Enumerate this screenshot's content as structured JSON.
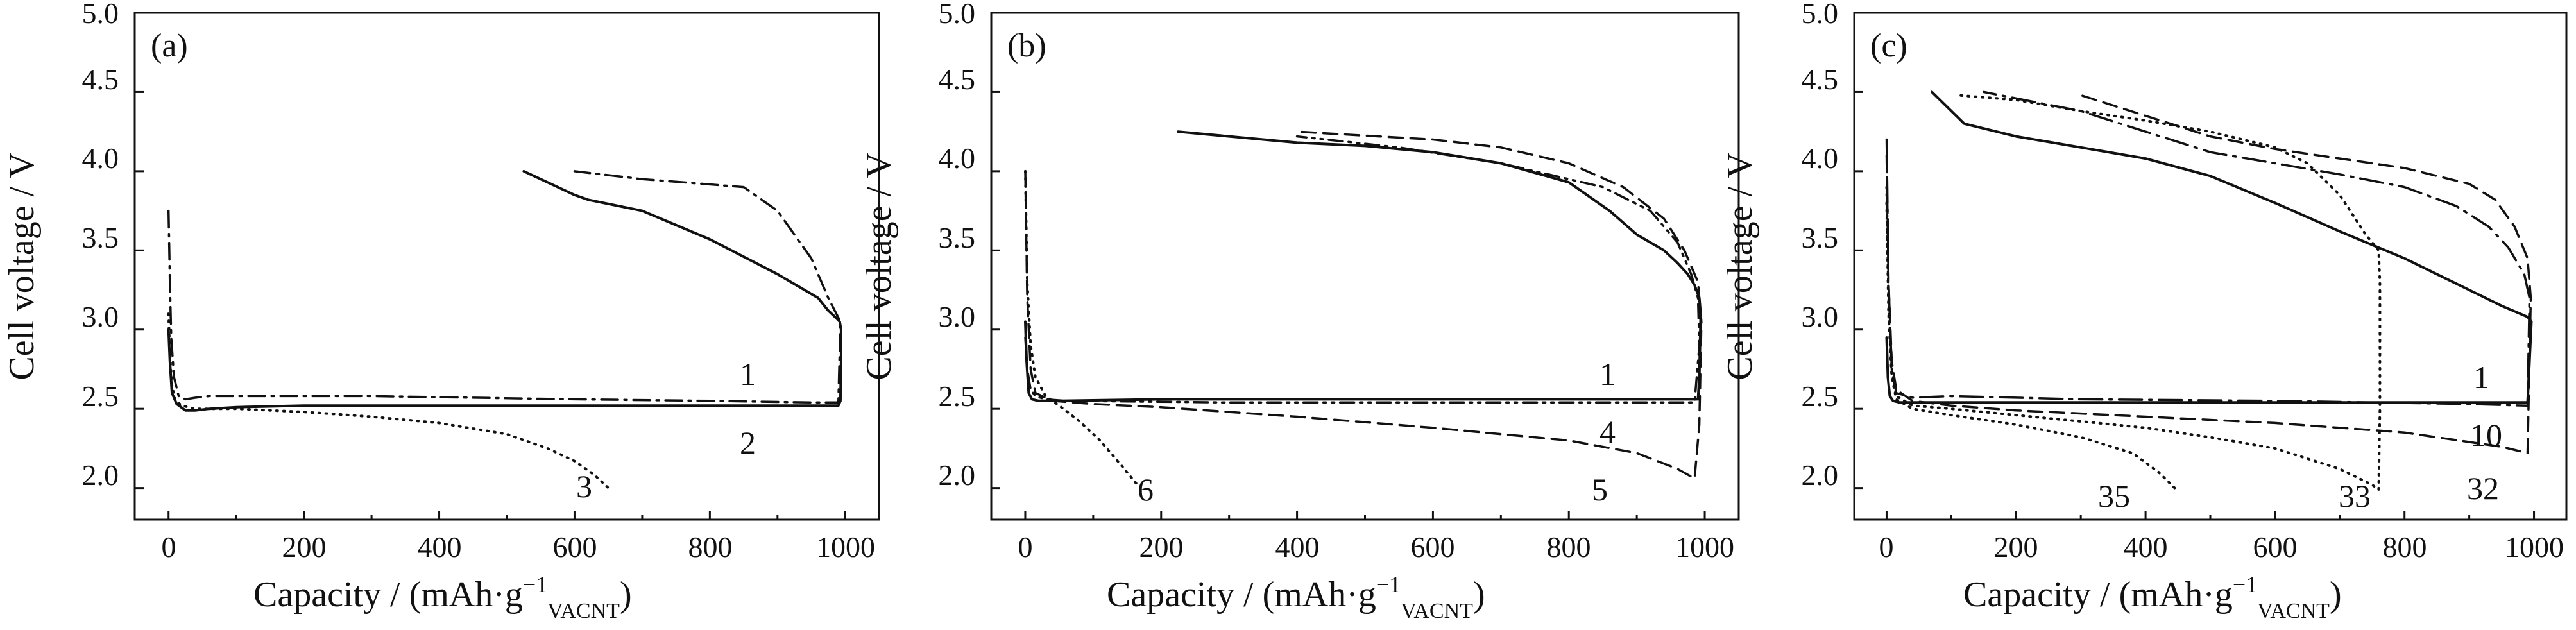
{
  "chart_data": [
    {
      "panel": "(a)",
      "type": "line",
      "xlabel": "Capacity / (mAh·g",
      "xlabel_sup": "−1",
      "xlabel_sub": "VACNT",
      "xlabel_close": ")",
      "ylabel": "Cell voltage / V",
      "xlim": [
        -50,
        1050
      ],
      "ylim": [
        1.8,
        5.0
      ],
      "xticks": [
        "0",
        "200",
        "400",
        "600",
        "800",
        "1000"
      ],
      "yticks": [
        "2.0",
        "2.5",
        "3.0",
        "3.5",
        "4.0",
        "4.5",
        "5.0"
      ],
      "grid": false,
      "series": [
        {
          "name": "1",
          "style": "solid",
          "x": [
            0,
            2,
            5,
            12,
            25,
            40,
            60,
            100,
            200,
            400,
            600,
            800,
            900,
            950,
            975,
            985,
            990,
            993,
            994,
            994,
            992,
            985,
            975,
            960,
            900,
            800,
            700,
            620,
            600,
            525
          ],
          "y": [
            3.0,
            2.8,
            2.6,
            2.53,
            2.49,
            2.49,
            2.5,
            2.51,
            2.52,
            2.52,
            2.52,
            2.52,
            2.52,
            2.52,
            2.52,
            2.52,
            2.52,
            2.55,
            2.8,
            3.0,
            3.05,
            3.08,
            3.12,
            3.2,
            3.35,
            3.57,
            3.75,
            3.82,
            3.85,
            4.0
          ]
        },
        {
          "name": "2",
          "style": "dashdot",
          "x": [
            0,
            2,
            4,
            8,
            15,
            25,
            40,
            60,
            100,
            300,
            600,
            800,
            950,
            990,
            993,
            975,
            950,
            900,
            850,
            700,
            600
          ],
          "y": [
            3.75,
            3.3,
            2.95,
            2.7,
            2.58,
            2.56,
            2.57,
            2.58,
            2.58,
            2.58,
            2.56,
            2.55,
            2.54,
            2.54,
            3.05,
            3.2,
            3.45,
            3.75,
            3.9,
            3.95,
            4.0
          ]
        },
        {
          "name": "3",
          "style": "dotted",
          "x": [
            0,
            2,
            5,
            10,
            20,
            40,
            100,
            200,
            300,
            400,
            500,
            560,
            600,
            630,
            650
          ],
          "y": [
            3.1,
            2.85,
            2.65,
            2.55,
            2.52,
            2.5,
            2.5,
            2.48,
            2.45,
            2.41,
            2.34,
            2.25,
            2.17,
            2.08,
            2.0
          ]
        }
      ]
    },
    {
      "panel": "(b)",
      "type": "line",
      "xlabel": "Capacity / (mAh·g",
      "xlabel_sup": "−1",
      "xlabel_sub": "VACNT",
      "xlabel_close": ")",
      "ylabel": "Cell voltage / V",
      "xlim": [
        -50,
        1050
      ],
      "ylim": [
        1.8,
        5.0
      ],
      "xticks": [
        "0",
        "200",
        "400",
        "600",
        "800",
        "1000"
      ],
      "yticks": [
        "2.0",
        "2.5",
        "3.0",
        "3.5",
        "4.0",
        "4.5",
        "5.0"
      ],
      "grid": false,
      "series": [
        {
          "name": "1",
          "style": "solid",
          "x": [
            0,
            2,
            5,
            10,
            20,
            50,
            200,
            400,
            600,
            800,
            980,
            990,
            992,
            994,
            992,
            985,
            975,
            960,
            940,
            900,
            860,
            800,
            700,
            600,
            500,
            400,
            300,
            225
          ],
          "y": [
            3.05,
            2.8,
            2.6,
            2.56,
            2.55,
            2.55,
            2.56,
            2.56,
            2.56,
            2.56,
            2.56,
            2.56,
            2.7,
            3.1,
            3.2,
            3.28,
            3.35,
            3.42,
            3.5,
            3.6,
            3.75,
            3.93,
            4.05,
            4.12,
            4.16,
            4.18,
            4.22,
            4.25
          ]
        },
        {
          "name": "4",
          "style": "dashdotdot",
          "x": [
            0,
            3,
            8,
            15,
            30,
            60,
            300,
            600,
            900,
            985,
            992,
            990,
            980,
            960,
            920,
            850,
            700,
            550,
            400
          ],
          "y": [
            2.95,
            2.75,
            2.62,
            2.58,
            2.56,
            2.55,
            2.54,
            2.54,
            2.54,
            2.54,
            2.9,
            3.2,
            3.35,
            3.55,
            3.75,
            3.9,
            4.05,
            4.15,
            4.22
          ]
        },
        {
          "name": "5",
          "style": "dashed",
          "x": [
            0,
            3,
            8,
            15,
            40,
            100,
            200,
            400,
            600,
            800,
            900,
            960,
            985,
            992,
            995,
            990,
            970,
            940,
            880,
            800,
            700,
            600,
            520,
            400
          ],
          "y": [
            4.0,
            3.2,
            2.75,
            2.6,
            2.55,
            2.53,
            2.51,
            2.45,
            2.38,
            2.3,
            2.22,
            2.12,
            2.06,
            2.4,
            3.05,
            3.3,
            3.5,
            3.7,
            3.9,
            4.05,
            4.15,
            4.2,
            4.22,
            4.25
          ]
        },
        {
          "name": "6",
          "style": "dotted",
          "x": [
            0,
            3,
            8,
            15,
            30,
            50,
            80,
            110,
            140,
            165
          ],
          "y": [
            4.0,
            3.3,
            2.9,
            2.7,
            2.58,
            2.52,
            2.42,
            2.3,
            2.15,
            2.02
          ]
        }
      ]
    },
    {
      "panel": "(c)",
      "type": "line",
      "xlabel": "Capacity / (mAh·g",
      "xlabel_sup": "−1",
      "xlabel_sub": "VACNT",
      "xlabel_close": ")",
      "ylabel": "Cell voltage / V",
      "xlim": [
        -50,
        1050
      ],
      "ylim": [
        1.8,
        5.0
      ],
      "xticks": [
        "0",
        "200",
        "400",
        "600",
        "800",
        "1000"
      ],
      "yticks": [
        "2.0",
        "2.5",
        "3.0",
        "3.5",
        "4.0",
        "4.5",
        "5.0"
      ],
      "grid": false,
      "series": [
        {
          "name": "1",
          "style": "solid",
          "x": [
            0,
            2,
            5,
            10,
            20,
            50,
            200,
            500,
            800,
            990,
            996,
            990,
            950,
            900,
            800,
            700,
            600,
            500,
            400,
            300,
            200,
            120,
            70
          ],
          "y": [
            2.95,
            2.7,
            2.58,
            2.55,
            2.54,
            2.54,
            2.54,
            2.54,
            2.54,
            2.54,
            3.05,
            3.08,
            3.15,
            3.25,
            3.45,
            3.62,
            3.8,
            3.97,
            4.08,
            4.15,
            4.22,
            4.3,
            4.5
          ]
        },
        {
          "name": "10",
          "style": "longdashdot",
          "x": [
            0,
            3,
            8,
            15,
            40,
            100,
            300,
            600,
            900,
            990,
            993,
            985,
            960,
            930,
            880,
            800,
            700,
            600,
            500,
            400,
            300,
            150
          ],
          "y": [
            4.2,
            3.3,
            2.75,
            2.6,
            2.57,
            2.58,
            2.56,
            2.55,
            2.53,
            2.52,
            3.2,
            3.35,
            3.52,
            3.65,
            3.78,
            3.9,
            3.98,
            4.05,
            4.12,
            4.25,
            4.38,
            4.5
          ]
        },
        {
          "name": "32",
          "style": "dashed",
          "x": [
            0,
            3,
            8,
            15,
            40,
            100,
            200,
            400,
            600,
            800,
            950,
            990,
            995,
            990,
            970,
            940,
            900,
            800,
            700,
            600,
            500,
            400,
            300
          ],
          "y": [
            4.1,
            3.3,
            2.8,
            2.62,
            2.55,
            2.52,
            2.49,
            2.45,
            2.41,
            2.35,
            2.26,
            2.22,
            3.2,
            3.45,
            3.65,
            3.82,
            3.92,
            4.02,
            4.08,
            4.14,
            4.22,
            4.35,
            4.48
          ]
        },
        {
          "name": "33",
          "style": "dotted",
          "x": [
            0,
            3,
            8,
            15,
            40,
            100,
            200,
            300,
            400,
            500,
            600,
            700,
            750,
            760,
            762,
            762,
            760,
            740,
            700,
            650,
            600,
            500,
            400,
            300,
            200,
            110
          ],
          "y": [
            3.9,
            3.2,
            2.75,
            2.58,
            2.52,
            2.5,
            2.46,
            2.42,
            2.38,
            2.32,
            2.25,
            2.12,
            2.02,
            1.99,
            2.5,
            3.3,
            3.5,
            3.6,
            3.85,
            4.05,
            4.15,
            4.25,
            4.32,
            4.38,
            4.45,
            4.48
          ]
        },
        {
          "name": "35",
          "style": "dotted",
          "x": [
            0,
            3,
            8,
            15,
            40,
            100,
            200,
            300,
            380,
            420,
            445
          ],
          "y": [
            3.8,
            3.1,
            2.7,
            2.56,
            2.5,
            2.46,
            2.4,
            2.32,
            2.22,
            2.1,
            2.0
          ]
        }
      ]
    }
  ]
}
